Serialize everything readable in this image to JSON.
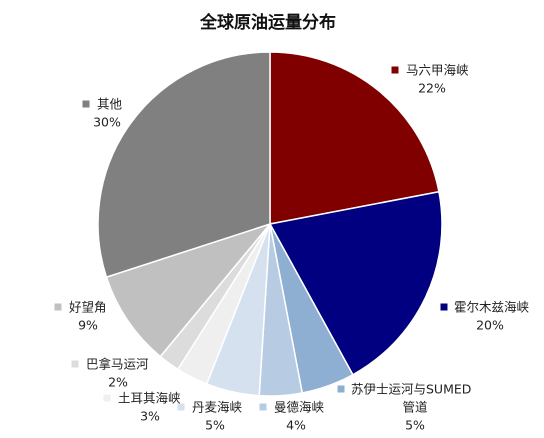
{
  "chart_data": {
    "type": "pie",
    "title": "全球原油运量分布",
    "slices": [
      {
        "name": "马六甲海峡",
        "value": 22,
        "value_label": "22%",
        "color": "#800000"
      },
      {
        "name": "霍尔木兹海峡",
        "value": 20,
        "value_label": "20%",
        "color": "#000080"
      },
      {
        "name": "苏伊士运河与SUMED管道",
        "name_lines": [
          "苏伊士运河与SUMED",
          "管道"
        ],
        "value": 5,
        "value_label": "5%",
        "color": "#8eaed2"
      },
      {
        "name": "曼德海峡",
        "value": 4,
        "value_label": "4%",
        "color": "#b7cbe2"
      },
      {
        "name": "丹麦海峡",
        "value": 5,
        "value_label": "5%",
        "color": "#d5e1ef"
      },
      {
        "name": "土耳其海峡",
        "value": 3,
        "value_label": "3%",
        "color": "#efefef"
      },
      {
        "name": "巴拿马运河",
        "value": 2,
        "value_label": "2%",
        "color": "#dcdcdc"
      },
      {
        "name": "好望角",
        "value": 9,
        "value_label": "9%",
        "color": "#c0c0c0"
      },
      {
        "name": "其他",
        "value": 30,
        "value_label": "30%",
        "color": "#808080"
      }
    ],
    "start_angle": "12 o'clock",
    "direction": "clockwise"
  }
}
